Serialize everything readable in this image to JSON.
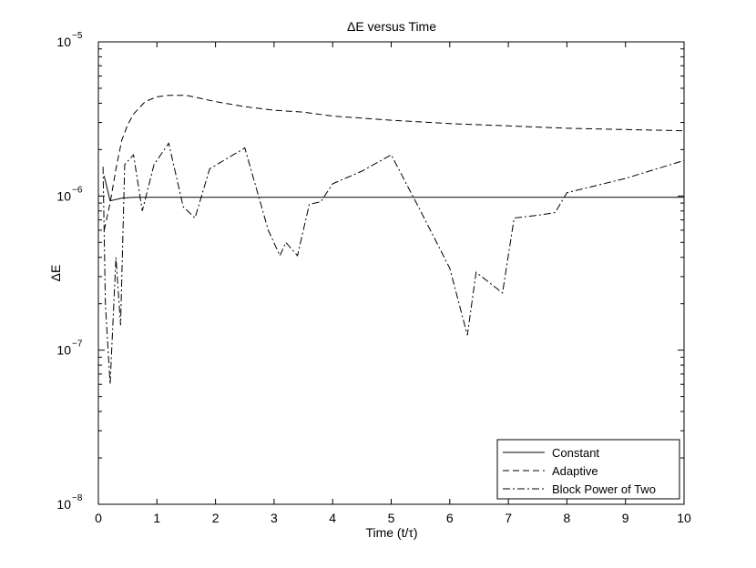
{
  "chart_data": {
    "type": "line",
    "title": "ΔE versus Time",
    "xlabel": "Time (t/τ)",
    "ylabel": "ΔE",
    "yscale": "log",
    "xlim": [
      0,
      10
    ],
    "ylim": [
      1e-08,
      1e-05
    ],
    "grid": false,
    "legend_position": "bottom-right",
    "x_ticks": [
      "0",
      "1",
      "2",
      "3",
      "4",
      "5",
      "6",
      "7",
      "8",
      "9",
      "10"
    ],
    "y_ticks": [
      {
        "base": "10",
        "exp": "−8",
        "value": 1e-08
      },
      {
        "base": "10",
        "exp": "−7",
        "value": 1e-07
      },
      {
        "base": "10",
        "exp": "−6",
        "value": 1e-06
      },
      {
        "base": "10",
        "exp": "−5",
        "value": 1e-05
      }
    ],
    "series": [
      {
        "name": "Constant",
        "style": "solid",
        "points": [
          [
            0.1,
            1.35e-06
          ],
          [
            0.2,
            9.3e-07
          ],
          [
            0.4,
            9.7e-07
          ],
          [
            0.6,
            9.8e-07
          ],
          [
            1,
            9.8e-07
          ],
          [
            2,
            9.8e-07
          ],
          [
            4,
            9.8e-07
          ],
          [
            6,
            9.8e-07
          ],
          [
            8,
            9.8e-07
          ],
          [
            10,
            9.8e-07
          ]
        ]
      },
      {
        "name": "Adaptive",
        "style": "dashed",
        "points": [
          [
            0.1,
            6e-07
          ],
          [
            0.2,
            9e-07
          ],
          [
            0.3,
            1.5e-06
          ],
          [
            0.4,
            2.3e-06
          ],
          [
            0.5,
            2.9e-06
          ],
          [
            0.6,
            3.4e-06
          ],
          [
            0.8,
            4.1e-06
          ],
          [
            1.0,
            4.4e-06
          ],
          [
            1.2,
            4.5e-06
          ],
          [
            1.5,
            4.5e-06
          ],
          [
            2.0,
            4.1e-06
          ],
          [
            2.5,
            3.8e-06
          ],
          [
            3.0,
            3.6e-06
          ],
          [
            3.5,
            3.5e-06
          ],
          [
            4.0,
            3.3e-06
          ],
          [
            5.0,
            3.1e-06
          ],
          [
            6.0,
            2.95e-06
          ],
          [
            7.0,
            2.85e-06
          ],
          [
            8.0,
            2.75e-06
          ],
          [
            9.0,
            2.7e-06
          ],
          [
            10.0,
            2.65e-06
          ]
        ]
      },
      {
        "name": "Block Power of Two",
        "style": "dashdot",
        "points": [
          [
            0.08,
            1.55e-06
          ],
          [
            0.12,
            2e-07
          ],
          [
            0.2,
            6e-08
          ],
          [
            0.3,
            4e-07
          ],
          [
            0.38,
            1.45e-07
          ],
          [
            0.45,
            1.6e-06
          ],
          [
            0.6,
            1.85e-06
          ],
          [
            0.75,
            8e-07
          ],
          [
            0.95,
            1.6e-06
          ],
          [
            1.2,
            2.2e-06
          ],
          [
            1.45,
            8.5e-07
          ],
          [
            1.65,
            7.2e-07
          ],
          [
            1.9,
            1.5e-06
          ],
          [
            2.5,
            2.05e-06
          ],
          [
            2.9,
            6e-07
          ],
          [
            3.1,
            4.1e-07
          ],
          [
            3.2,
            5e-07
          ],
          [
            3.4,
            4.1e-07
          ],
          [
            3.6,
            8.8e-07
          ],
          [
            3.8,
            9.2e-07
          ],
          [
            4.0,
            1.2e-06
          ],
          [
            4.5,
            1.45e-06
          ],
          [
            5.0,
            1.85e-06
          ],
          [
            5.5,
            8e-07
          ],
          [
            6.0,
            3.4e-07
          ],
          [
            6.3,
            1.25e-07
          ],
          [
            6.45,
            3.2e-07
          ],
          [
            6.9,
            2.35e-07
          ],
          [
            7.1,
            7.2e-07
          ],
          [
            7.5,
            7.5e-07
          ],
          [
            7.8,
            7.8e-07
          ],
          [
            8.0,
            1.05e-06
          ],
          [
            9.0,
            1.3e-06
          ],
          [
            10.0,
            1.7e-06
          ]
        ]
      }
    ]
  }
}
